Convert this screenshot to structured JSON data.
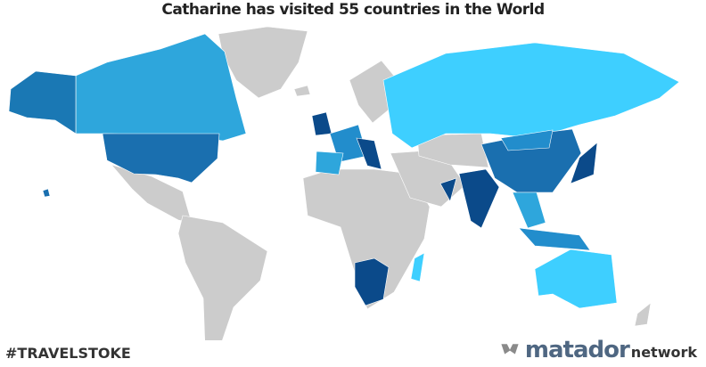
{
  "title": "Catharine has visited 55 countries in the World",
  "hashtag": "#TRAVELSTOKE",
  "brand": {
    "main": "matador",
    "suffix": "network"
  },
  "colors": {
    "unvisited": "#cccccc",
    "light": "#3ecfff",
    "medium_light": "#2ea6dc",
    "medium": "#228dcc",
    "dark": "#1a6faf",
    "darkest": "#0b4a8a"
  },
  "visited_count": 55
}
